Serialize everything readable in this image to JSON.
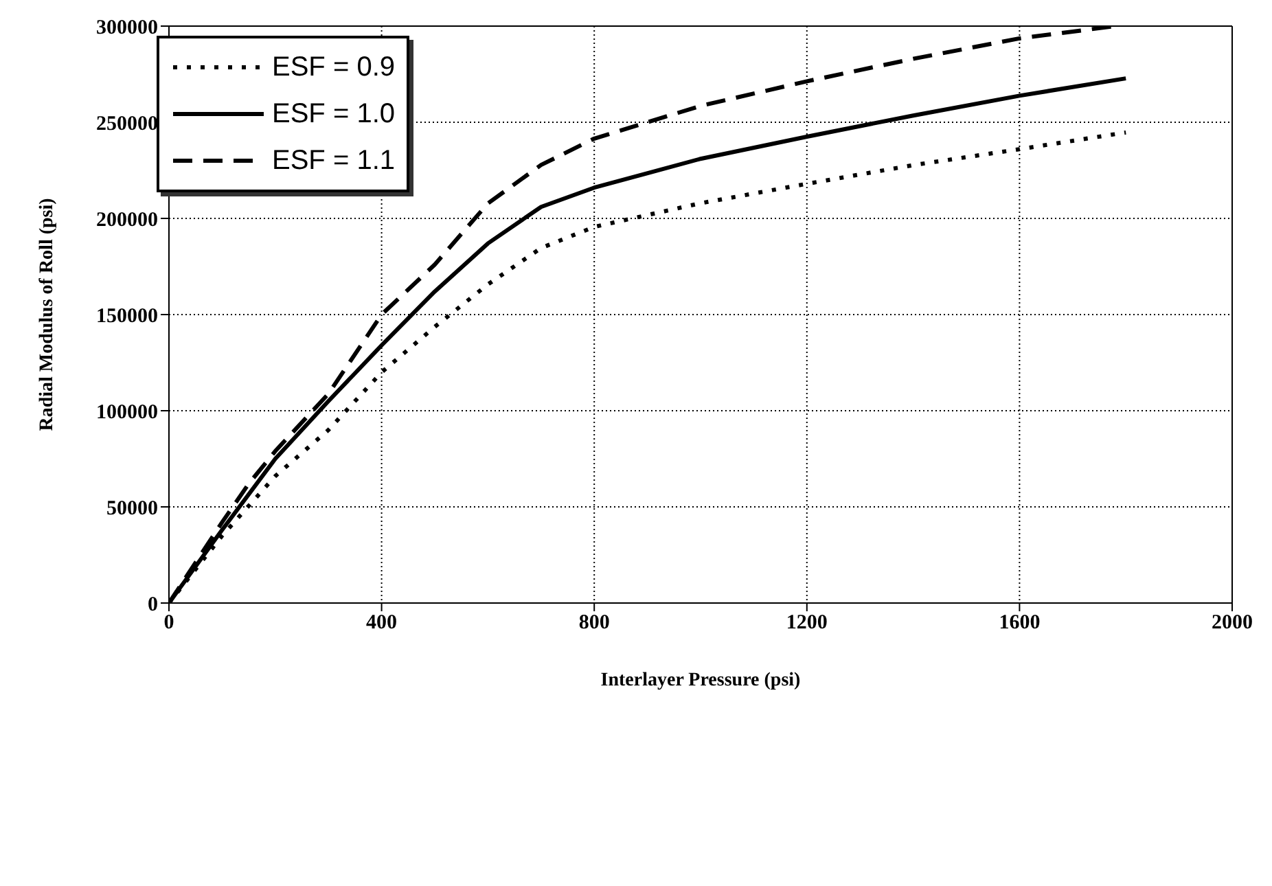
{
  "chart_data": {
    "type": "line",
    "xlabel": "Interlayer Pressure (psi)",
    "ylabel": "Radial Modulus of Roll (psi)",
    "xlim": [
      0,
      2000
    ],
    "xticks": [
      0,
      400,
      800,
      1200,
      1600,
      2000
    ],
    "ylim": [
      0,
      300000
    ],
    "yticks": [
      0,
      50000,
      100000,
      150000,
      200000,
      250000,
      300000
    ],
    "grid": true,
    "legend": "top left",
    "marker": "none",
    "series": [
      {
        "name": "ESF = 0.9",
        "color": "#000000",
        "line_style": "dotted",
        "x": [
          0,
          100,
          200,
          300,
          400,
          500,
          600,
          700,
          800,
          1000,
          1200,
          1400,
          1600,
          1800
        ],
        "values": [
          0,
          35000,
          66000,
          90000,
          120000,
          143600,
          165700,
          184600,
          195600,
          207900,
          218000,
          227700,
          236000,
          244700
        ]
      },
      {
        "name": "ESF = 1.0",
        "color": "#000000",
        "line_style": "solid",
        "x": [
          0,
          100,
          200,
          300,
          400,
          500,
          600,
          700,
          800,
          1000,
          1200,
          1400,
          1600,
          1800
        ],
        "values": [
          0,
          38000,
          75000,
          105000,
          134000,
          162000,
          187000,
          206000,
          216000,
          231000,
          242500,
          253500,
          263800,
          272800
        ]
      },
      {
        "name": "ESF = 1.1",
        "color": "#000000",
        "line_style": "dashed",
        "x": [
          0,
          100,
          150,
          200,
          300,
          400,
          500,
          600,
          700,
          800,
          1000,
          1200,
          1400,
          1600,
          1780
        ],
        "values": [
          0,
          42000,
          62000,
          79000,
          108800,
          150000,
          176000,
          207800,
          227800,
          241500,
          258500,
          271300,
          283000,
          293600,
          300000
        ]
      }
    ]
  }
}
